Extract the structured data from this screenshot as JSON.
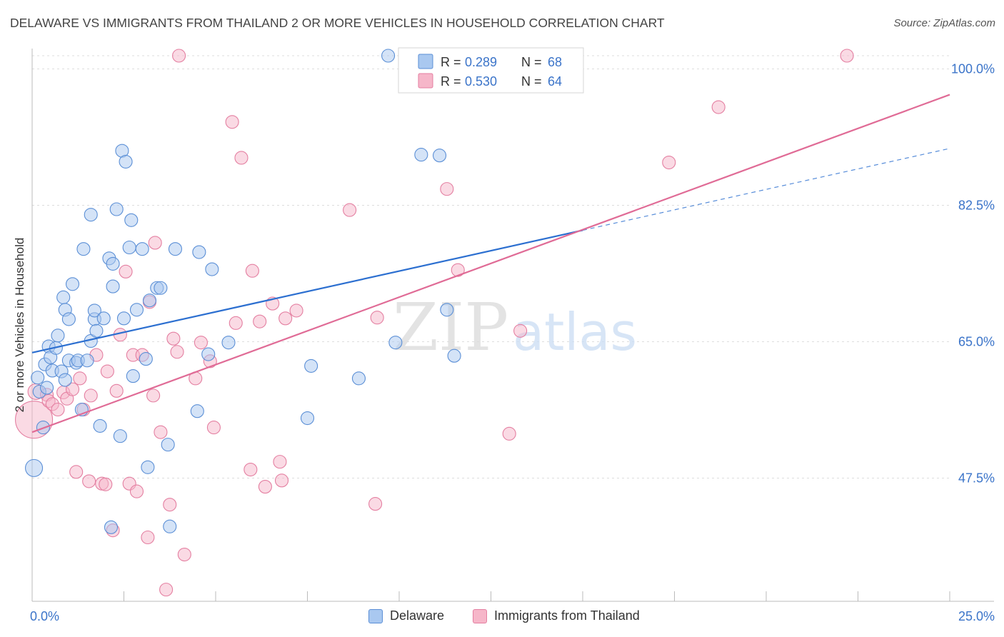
{
  "title": "DELAWARE VS IMMIGRANTS FROM THAILAND 2 OR MORE VEHICLES IN HOUSEHOLD CORRELATION CHART",
  "source": "Source: ZipAtlas.com",
  "watermark": {
    "zip": "ZIP",
    "atlas": "atlas"
  },
  "colors": {
    "delaware_fill": "#a9c8f0",
    "delaware_stroke": "#5b8fd6",
    "delaware_line": "#2c6fd0",
    "thailand_fill": "#f6b6c9",
    "thailand_stroke": "#e47fa1",
    "thailand_line": "#e06b96",
    "axis_label": "#3b74c9",
    "grid": "#dddddd"
  },
  "legend_top": [
    {
      "r_label": "R =",
      "r_value": "0.289",
      "n_label": "N =",
      "n_value": "68"
    },
    {
      "r_label": "R =",
      "r_value": "0.530",
      "n_label": "N =",
      "n_value": "64"
    }
  ],
  "legend_bottom": [
    "Delaware",
    "Immigrants from Thailand"
  ],
  "chart_data": {
    "type": "scatter",
    "xlabel": "",
    "ylabel": "2 or more Vehicles in Household",
    "x_tick_labels": [
      "0.0%",
      "25.0%"
    ],
    "y_tick_labels": [
      "100.0%",
      "82.5%",
      "65.0%",
      "47.5%"
    ],
    "y_ticks": [
      100.0,
      82.5,
      65.0,
      47.5
    ],
    "xlim": [
      0,
      25
    ],
    "ylim": [
      31.7,
      101.7
    ],
    "grid": true,
    "legend_placement": "top-center",
    "series": [
      {
        "name": "Delaware",
        "r": 0.289,
        "n": 68,
        "trend": {
          "x0": 0.0,
          "y0": 63.6,
          "x1": 15.0,
          "y1": 79.3,
          "x_dashed_end": 25.0,
          "y_dashed_end": 89.8
        },
        "points": [
          [
            0.05,
            48.8,
            12
          ],
          [
            0.15,
            60.4,
            9
          ],
          [
            0.2,
            58.6,
            9
          ],
          [
            0.3,
            54.0,
            9
          ],
          [
            0.35,
            62.1,
            9
          ],
          [
            0.4,
            59.1,
            9
          ],
          [
            0.45,
            64.4,
            9
          ],
          [
            0.5,
            63.0,
            9
          ],
          [
            0.55,
            61.3,
            9
          ],
          [
            0.65,
            64.2,
            9
          ],
          [
            0.7,
            65.8,
            9
          ],
          [
            0.8,
            61.2,
            9
          ],
          [
            0.85,
            70.7,
            9
          ],
          [
            0.9,
            60.1,
            9
          ],
          [
            0.9,
            69.1,
            9
          ],
          [
            1.0,
            67.9,
            9
          ],
          [
            1.0,
            62.6,
            9
          ],
          [
            1.1,
            72.4,
            9
          ],
          [
            1.2,
            62.3,
            9
          ],
          [
            1.25,
            62.6,
            9
          ],
          [
            1.35,
            56.3,
            9
          ],
          [
            1.4,
            76.9,
            9
          ],
          [
            1.5,
            62.6,
            9
          ],
          [
            1.6,
            81.3,
            9
          ],
          [
            1.6,
            65.1,
            9
          ],
          [
            1.7,
            67.9,
            9
          ],
          [
            1.7,
            69.0,
            9
          ],
          [
            1.75,
            66.4,
            9
          ],
          [
            1.85,
            54.2,
            9
          ],
          [
            1.95,
            68.0,
            9
          ],
          [
            2.1,
            75.7,
            9
          ],
          [
            2.15,
            41.2,
            9
          ],
          [
            2.2,
            72.1,
            9
          ],
          [
            2.2,
            75.0,
            9
          ],
          [
            2.3,
            82.0,
            9
          ],
          [
            2.4,
            52.9,
            9
          ],
          [
            2.45,
            89.5,
            9
          ],
          [
            2.5,
            68.0,
            9
          ],
          [
            2.55,
            88.1,
            9
          ],
          [
            2.65,
            77.1,
            9
          ],
          [
            2.7,
            80.6,
            9
          ],
          [
            2.75,
            60.6,
            9
          ],
          [
            2.85,
            69.1,
            9
          ],
          [
            3.0,
            76.9,
            9
          ],
          [
            3.1,
            62.8,
            9
          ],
          [
            3.15,
            48.9,
            9
          ],
          [
            3.2,
            70.3,
            9
          ],
          [
            3.4,
            71.9,
            9
          ],
          [
            3.5,
            71.9,
            9
          ],
          [
            3.7,
            51.8,
            9
          ],
          [
            3.75,
            41.3,
            9
          ],
          [
            3.9,
            76.9,
            9
          ],
          [
            4.5,
            56.1,
            9
          ],
          [
            4.55,
            76.5,
            9
          ],
          [
            4.8,
            63.4,
            9
          ],
          [
            4.9,
            74.3,
            9
          ],
          [
            5.35,
            64.9,
            9
          ],
          [
            7.5,
            55.2,
            9
          ],
          [
            7.6,
            61.9,
            9
          ],
          [
            8.9,
            60.3,
            9
          ],
          [
            9.7,
            101.7,
            9
          ],
          [
            9.9,
            64.9,
            9
          ],
          [
            10.6,
            89.0,
            9
          ],
          [
            11.1,
            88.9,
            9
          ],
          [
            11.3,
            69.1,
            9
          ],
          [
            11.5,
            63.2,
            9
          ]
        ]
      },
      {
        "name": "Immigrants from Thailand",
        "r": 0.53,
        "n": 64,
        "trend": {
          "x0": 0.0,
          "y0": 53.4,
          "x1": 25.0,
          "y1": 96.7
        },
        "points": [
          [
            0.05,
            55.0,
            26
          ],
          [
            0.1,
            58.6,
            11
          ],
          [
            0.4,
            58.2,
            9
          ],
          [
            0.45,
            57.4,
            9
          ],
          [
            0.55,
            57.0,
            9
          ],
          [
            0.7,
            56.3,
            9
          ],
          [
            0.85,
            58.5,
            9
          ],
          [
            0.95,
            57.7,
            9
          ],
          [
            1.1,
            58.9,
            9
          ],
          [
            1.2,
            48.3,
            9
          ],
          [
            1.3,
            60.3,
            9
          ],
          [
            1.4,
            56.3,
            9
          ],
          [
            1.55,
            47.1,
            9
          ],
          [
            1.6,
            58.1,
            9
          ],
          [
            1.75,
            63.3,
            9
          ],
          [
            1.9,
            46.8,
            9
          ],
          [
            2.0,
            46.7,
            9
          ],
          [
            2.05,
            61.2,
            9
          ],
          [
            2.2,
            40.8,
            9
          ],
          [
            2.3,
            58.7,
            9
          ],
          [
            2.4,
            65.9,
            9
          ],
          [
            2.55,
            74.0,
            9
          ],
          [
            2.65,
            46.8,
            9
          ],
          [
            2.75,
            63.3,
            9
          ],
          [
            2.85,
            45.8,
            9
          ],
          [
            3.0,
            63.3,
            9
          ],
          [
            3.15,
            39.9,
            9
          ],
          [
            3.2,
            70.1,
            9
          ],
          [
            3.3,
            58.1,
            9
          ],
          [
            3.35,
            77.7,
            9
          ],
          [
            3.5,
            53.4,
            9
          ],
          [
            3.65,
            33.2,
            9
          ],
          [
            3.75,
            44.1,
            9
          ],
          [
            3.85,
            65.4,
            9
          ],
          [
            3.95,
            63.7,
            9
          ],
          [
            4.0,
            101.7,
            9
          ],
          [
            4.15,
            37.7,
            9
          ],
          [
            4.45,
            60.3,
            9
          ],
          [
            4.6,
            64.9,
            9
          ],
          [
            4.85,
            62.5,
            9
          ],
          [
            4.95,
            54.0,
            9
          ],
          [
            5.45,
            93.2,
            9
          ],
          [
            5.55,
            67.4,
            9
          ],
          [
            5.7,
            88.6,
            9
          ],
          [
            5.95,
            48.6,
            9
          ],
          [
            6.0,
            74.1,
            9
          ],
          [
            6.2,
            67.6,
            9
          ],
          [
            6.35,
            46.4,
            9
          ],
          [
            6.55,
            69.9,
            9
          ],
          [
            6.75,
            49.6,
            9
          ],
          [
            6.8,
            47.2,
            9
          ],
          [
            6.9,
            68.0,
            9
          ],
          [
            7.2,
            69.0,
            9
          ],
          [
            8.65,
            81.9,
            9
          ],
          [
            9.35,
            44.2,
            9
          ],
          [
            9.4,
            68.1,
            9
          ],
          [
            10.2,
            101.7,
            9
          ],
          [
            11.3,
            84.6,
            9
          ],
          [
            11.6,
            74.2,
            9
          ],
          [
            13.0,
            53.2,
            9
          ],
          [
            13.3,
            66.4,
            9
          ],
          [
            17.35,
            88.0,
            9
          ],
          [
            18.7,
            95.1,
            9
          ],
          [
            22.2,
            101.7,
            9
          ]
        ]
      }
    ]
  }
}
